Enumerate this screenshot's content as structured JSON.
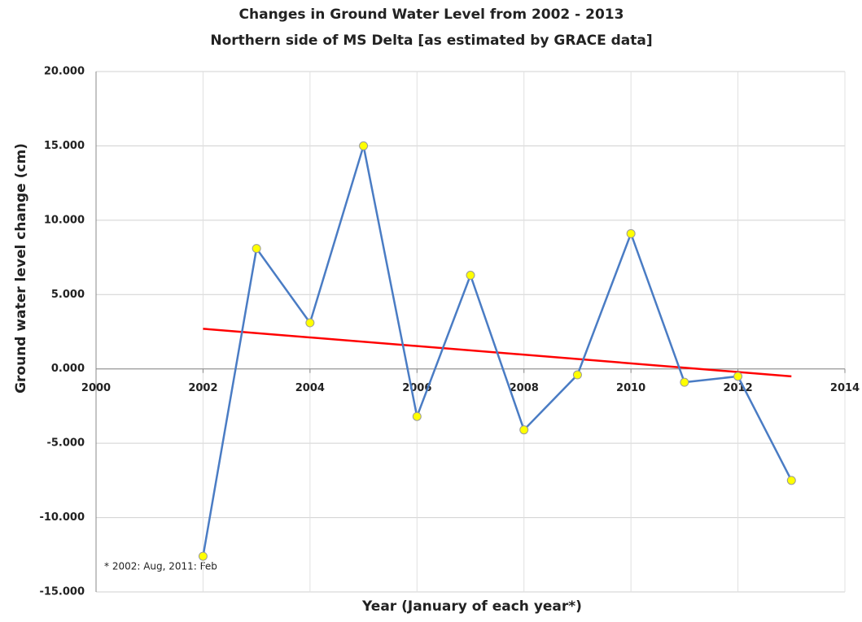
{
  "chart_data": {
    "type": "line",
    "title": "Changes in Ground Water Level from 2002 - 2013",
    "subtitle": "Northern side of MS Delta [as estimated by GRACE data]",
    "x_label": "Year (January of each year*)",
    "y_label": "Ground water level change (cm)",
    "annotation": "* 2002: Aug, 2011: Feb",
    "x": [
      2002,
      2003,
      2004,
      2005,
      2006,
      2007,
      2008,
      2009,
      2010,
      2011,
      2012,
      2013
    ],
    "values": [
      -12.6,
      8.1,
      3.1,
      15.0,
      -3.2,
      6.3,
      -4.1,
      -0.4,
      9.1,
      -0.9,
      -0.5,
      -7.5
    ],
    "color": "#4a7cc4",
    "marker_color": "#ffff00",
    "trend": {
      "x": [
        2002,
        2013
      ],
      "values": [
        2.7,
        -0.5
      ],
      "color": "#ff0000"
    },
    "xlim": [
      2000,
      2014
    ],
    "xticks": [
      2000,
      2002,
      2004,
      2006,
      2008,
      2010,
      2012,
      2014
    ],
    "ylim": [
      -15,
      20
    ],
    "yticks": [
      {
        "value": -15,
        "label": "-15.000"
      },
      {
        "value": -10,
        "label": "-10.000"
      },
      {
        "value": -5,
        "label": "-5.000"
      },
      {
        "value": 0,
        "label": "0.000"
      },
      {
        "value": 5,
        "label": "5.000"
      },
      {
        "value": 10,
        "label": "10.000"
      },
      {
        "value": 15,
        "label": "15.000"
      },
      {
        "value": 20,
        "label": "20.000"
      }
    ],
    "grid": true
  }
}
